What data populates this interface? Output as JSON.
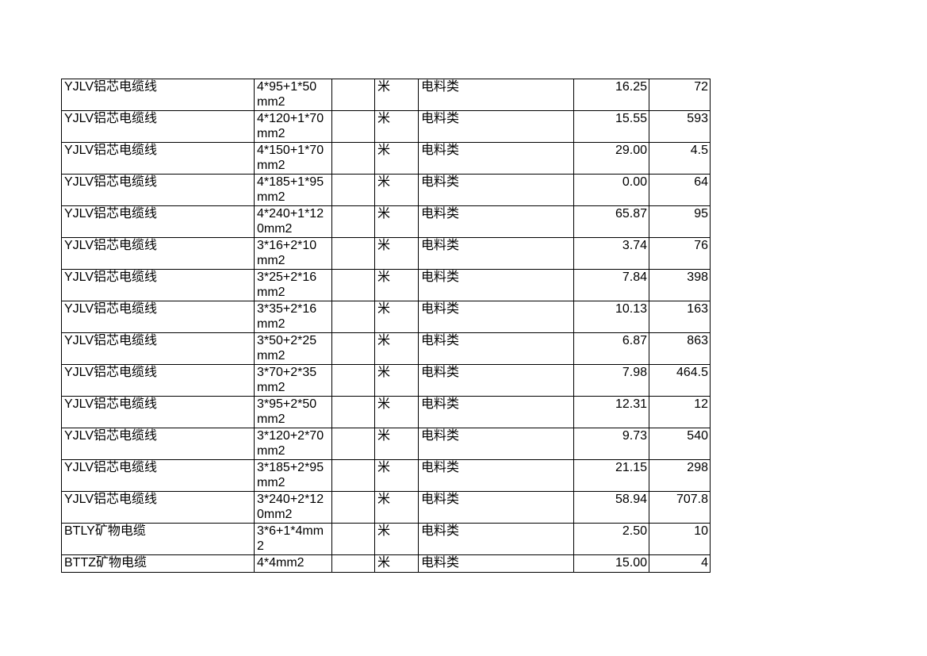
{
  "page": {
    "background_color": "#ffffff",
    "text_color": "#000000",
    "border_color": "#000000"
  },
  "table": {
    "rows": [
      {
        "name": "YJLV铝芯电缆线",
        "spec": "4*95+1*50\nmm2",
        "unit": "米",
        "category": "电料类",
        "price": "16.25",
        "qty": "72"
      },
      {
        "name": "YJLV铝芯电缆线",
        "spec": "4*120+1*70\nmm2",
        "unit": "米",
        "category": "电料类",
        "price": "15.55",
        "qty": "593"
      },
      {
        "name": "YJLV铝芯电缆线",
        "spec": "4*150+1*70\nmm2",
        "unit": "米",
        "category": "电料类",
        "price": "29.00",
        "qty": "4.5"
      },
      {
        "name": "YJLV铝芯电缆线",
        "spec": "4*185+1*95\nmm2",
        "unit": "米",
        "category": "电料类",
        "price": "0.00",
        "qty": "64"
      },
      {
        "name": "YJLV铝芯电缆线",
        "spec": "4*240+1*12\n0mm2",
        "unit": "米",
        "category": "电料类",
        "price": "65.87",
        "qty": "95"
      },
      {
        "name": "YJLV铝芯电缆线",
        "spec": "3*16+2*10\nmm2",
        "unit": "米",
        "category": "电料类",
        "price": "3.74",
        "qty": "76"
      },
      {
        "name": "YJLV铝芯电缆线",
        "spec": "3*25+2*16\nmm2",
        "unit": "米",
        "category": "电料类",
        "price": "7.84",
        "qty": "398"
      },
      {
        "name": "YJLV铝芯电缆线",
        "spec": "3*35+2*16\nmm2",
        "unit": "米",
        "category": "电料类",
        "price": "10.13",
        "qty": "163"
      },
      {
        "name": "YJLV铝芯电缆线",
        "spec": "3*50+2*25\nmm2",
        "unit": "米",
        "category": "电料类",
        "price": "6.87",
        "qty": "863"
      },
      {
        "name": "YJLV铝芯电缆线",
        "spec": "3*70+2*35\nmm2",
        "unit": "米",
        "category": "电料类",
        "price": "7.98",
        "qty": "464.5"
      },
      {
        "name": "YJLV铝芯电缆线",
        "spec": "3*95+2*50\nmm2",
        "unit": "米",
        "category": "电料类",
        "price": "12.31",
        "qty": "12"
      },
      {
        "name": "YJLV铝芯电缆线",
        "spec": "3*120+2*70\nmm2",
        "unit": "米",
        "category": "电料类",
        "price": "9.73",
        "qty": "540"
      },
      {
        "name": "YJLV铝芯电缆线",
        "spec": "3*185+2*95\nmm2",
        "unit": "米",
        "category": "电料类",
        "price": "21.15",
        "qty": "298"
      },
      {
        "name": "YJLV铝芯电缆线",
        "spec": "3*240+2*12\n0mm2",
        "unit": "米",
        "category": "电料类",
        "price": "58.94",
        "qty": "707.8"
      },
      {
        "name": "BTLY矿物电缆",
        "spec": "3*6+1*4mm\n2",
        "unit": "米",
        "category": "电料类",
        "price": "2.50",
        "qty": "10"
      },
      {
        "name": "BTTZ矿物电缆",
        "spec": "4*4mm2",
        "unit": "米",
        "category": "电料类",
        "price": "15.00",
        "qty": "4"
      }
    ]
  }
}
